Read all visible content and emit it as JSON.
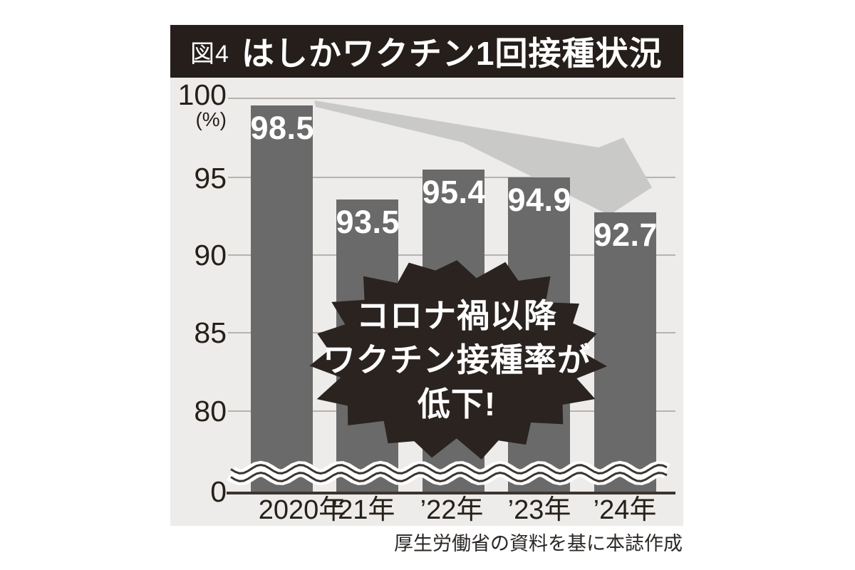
{
  "figure": {
    "label": "図4",
    "title": "はしかワクチン1回接種状況"
  },
  "chart_data": {
    "type": "bar",
    "title": "はしかワクチン1回接種状況",
    "categories": [
      "2020年",
      "’21年",
      "’22年",
      "’23年",
      "’24年"
    ],
    "values": [
      98.5,
      93.5,
      95.4,
      94.9,
      92.7
    ],
    "unit": "(%)",
    "ylabel": "(%)",
    "y_ticks": [
      100,
      95,
      90,
      85,
      80,
      0
    ],
    "ylim": [
      80,
      100
    ],
    "axis_break": true,
    "grid": "horizontal",
    "legend": "none",
    "bar_color": "#6a6a6a",
    "annotation": {
      "lines": [
        "コロナ禍以降",
        "ワクチン接種率が",
        "低下!"
      ]
    },
    "trend_arrow": {
      "direction": "down-right",
      "from_category": "2020年",
      "to_category": "’24年"
    }
  },
  "source": "厚生労働省の資料を基に本誌作成",
  "colors": {
    "title_bar": "#251e1b",
    "panel_bg": "#edecea",
    "bar": "#6a6a6a",
    "arrow": "#c9c9c8",
    "burst": "#2a2320",
    "grid": "#b6b3af",
    "axis_line": "#3b3531",
    "text": "#262019"
  }
}
